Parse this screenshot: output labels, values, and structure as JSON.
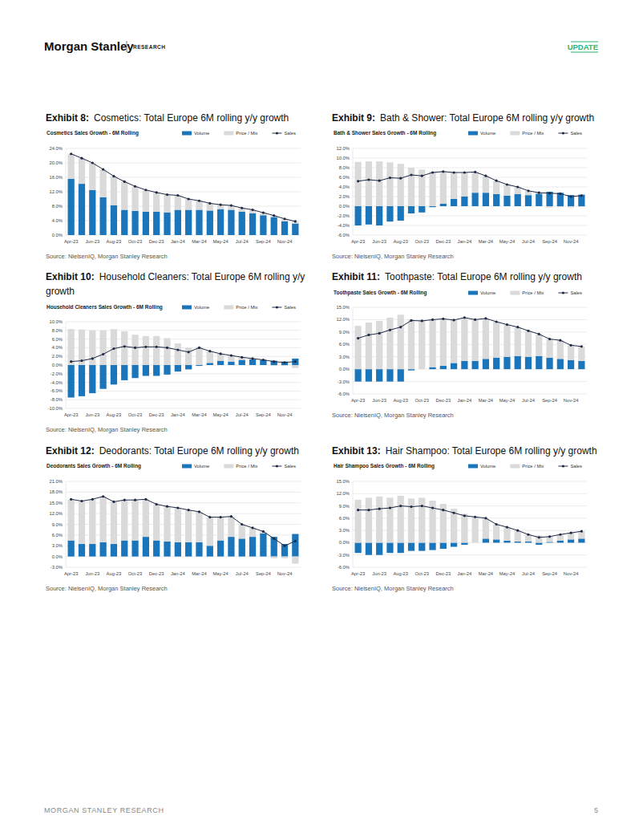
{
  "header": {
    "brand": "Morgan Stanley",
    "section": "RESEARCH",
    "tag": "UPDATE"
  },
  "footer": {
    "left": "MORGAN STANLEY RESEARCH",
    "page": "5"
  },
  "chart_data": [
    {
      "type": "bar",
      "stacked": true,
      "legend": "top-right",
      "grid": true,
      "exhibit": "Exhibit 8:",
      "title": "Cosmetics: Total Europe 6M rolling y/y growth",
      "subtitle": "Cosmetics Sales Growth - 6M Rolling",
      "source": "Source: NielsenIQ, Morgan Stanley Research",
      "categories": [
        "Apr-23",
        null,
        "Jun-23",
        null,
        "Aug-23",
        null,
        "Oct-23",
        null,
        "Dec-23",
        null,
        "Jan-24",
        null,
        "Mar-24",
        null,
        "May-24",
        null,
        "Jul-24",
        null,
        "Sep-24",
        null,
        "Nov-24",
        null
      ],
      "ylim": [
        0,
        24
      ],
      "yticks": [
        {
          "value": 0,
          "label": "0.0%"
        },
        {
          "value": 4,
          "label": "4.0%"
        },
        {
          "value": 8,
          "label": "8.0%"
        },
        {
          "value": 12,
          "label": "12.0%"
        },
        {
          "value": 16,
          "label": "16.0%"
        },
        {
          "value": 20,
          "label": "20.0%"
        },
        {
          "value": 24,
          "label": "24.0%"
        }
      ],
      "series": [
        {
          "name": "Volume",
          "type": "bar",
          "color": "#1b75bb",
          "values": [
            15.6,
            14.2,
            12.5,
            10.5,
            8.3,
            7.0,
            6.7,
            6.5,
            6.5,
            6.3,
            7.0,
            7.0,
            7.0,
            6.8,
            7.2,
            7.0,
            6.5,
            6.0,
            5.5,
            5.0,
            3.8,
            3.2
          ]
        },
        {
          "name": "Price / Mix",
          "type": "bar",
          "color": "#dadada",
          "values": [
            6.9,
            7.1,
            7.5,
            7.7,
            8.0,
            7.8,
            6.8,
            6.0,
            5.3,
            4.9,
            4.0,
            3.0,
            2.5,
            2.0,
            1.2,
            1.2,
            1.0,
            1.0,
            0.7,
            0.4,
            0.7,
            0.6
          ]
        },
        {
          "name": "Sales",
          "type": "line",
          "color": "#1f2a44",
          "marker": "circle",
          "values": [
            22.5,
            21.3,
            20.0,
            18.2,
            16.3,
            14.8,
            13.5,
            12.5,
            11.8,
            11.2,
            11.0,
            10.0,
            9.5,
            8.8,
            8.4,
            8.2,
            7.5,
            7.0,
            6.2,
            5.4,
            4.5,
            3.8
          ]
        }
      ]
    },
    {
      "type": "bar",
      "stacked": true,
      "legend": "top-right",
      "grid": true,
      "exhibit": "Exhibit 9:",
      "title": "Bath & Shower: Total Europe 6M rolling y/y growth",
      "subtitle": "Bath & Shower Sales Growth - 6M Rolling",
      "source": "Source: NielsenIQ, Morgan Stanley Research",
      "categories": [
        "Apr-23",
        null,
        "Jun-23",
        null,
        "Aug-23",
        null,
        "Oct-23",
        null,
        "Dec-23",
        null,
        "Jan-24",
        null,
        "Mar-24",
        null,
        "May-24",
        null,
        "Jul-24",
        null,
        "Sep-24",
        null,
        "Nov-24",
        null
      ],
      "ylim": [
        -6,
        12
      ],
      "yticks": [
        {
          "value": -6,
          "label": "-6.0%"
        },
        {
          "value": -4,
          "label": "-4.0%"
        },
        {
          "value": -2,
          "label": "-2.0%"
        },
        {
          "value": 0,
          "label": "0.0%"
        },
        {
          "value": 2,
          "label": "2.0%"
        },
        {
          "value": 4,
          "label": "4.0%"
        },
        {
          "value": 6,
          "label": "6.0%"
        },
        {
          "value": 8,
          "label": "8.0%"
        },
        {
          "value": 10,
          "label": "10.0%"
        },
        {
          "value": 12,
          "label": "12.0%"
        }
      ],
      "series": [
        {
          "name": "Volume",
          "type": "bar",
          "color": "#1b75bb",
          "values": [
            -4.0,
            -3.8,
            -4.0,
            -3.2,
            -3.0,
            -1.5,
            -1.3,
            -0.2,
            0.5,
            1.5,
            2.0,
            2.8,
            2.8,
            2.5,
            2.2,
            2.5,
            2.3,
            2.6,
            3.0,
            2.8,
            2.3,
            2.4
          ]
        },
        {
          "name": "Price / Mix",
          "type": "bar",
          "color": "#dadada",
          "values": [
            9.2,
            9.3,
            9.3,
            9.1,
            8.8,
            8.0,
            7.6,
            7.2,
            6.7,
            5.5,
            5.0,
            4.3,
            3.5,
            2.8,
            2.3,
            1.5,
            0.9,
            0.2,
            -0.3,
            -0.2,
            -0.3,
            -0.2
          ]
        },
        {
          "name": "Sales",
          "type": "line",
          "color": "#1f2a44",
          "marker": "circle",
          "values": [
            5.2,
            5.5,
            5.3,
            5.9,
            5.8,
            6.5,
            6.3,
            7.0,
            7.2,
            7.0,
            7.0,
            7.1,
            6.3,
            5.3,
            4.5,
            4.0,
            3.2,
            2.8,
            2.7,
            2.6,
            2.0,
            2.2
          ]
        }
      ]
    },
    {
      "type": "bar",
      "stacked": true,
      "legend": "top-right",
      "grid": true,
      "exhibit": "Exhibit 10:",
      "title": "Household Cleaners: Total Europe 6M rolling y/y growth",
      "subtitle": "Household Cleaners Sales Growth - 6M Rolling",
      "source": "Source: NielsenIQ, Morgan Stanley Research",
      "categories": [
        "Apr-23",
        null,
        "Jun-23",
        null,
        "Aug-23",
        null,
        "Oct-23",
        null,
        "Dec-23",
        null,
        "Jan-24",
        null,
        "Mar-24",
        null,
        "May-24",
        null,
        "Jul-24",
        null,
        "Sep-24",
        null,
        "Nov-24",
        null
      ],
      "ylim": [
        -10,
        10
      ],
      "yticks": [
        {
          "value": -10,
          "label": "-10.0%"
        },
        {
          "value": -8,
          "label": "-8.0%"
        },
        {
          "value": -6,
          "label": "-6.0%"
        },
        {
          "value": -4,
          "label": "-4.0%"
        },
        {
          "value": -2,
          "label": "-2.0%"
        },
        {
          "value": 0,
          "label": "0.0%"
        },
        {
          "value": 2,
          "label": "2.0%"
        },
        {
          "value": 4,
          "label": "4.0%"
        },
        {
          "value": 6,
          "label": "6.0%"
        },
        {
          "value": 8,
          "label": "8.0%"
        },
        {
          "value": 10,
          "label": "10.0%"
        }
      ],
      "series": [
        {
          "name": "Volume",
          "type": "bar",
          "color": "#1b75bb",
          "values": [
            -7.5,
            -7.2,
            -6.5,
            -5.5,
            -4.5,
            -3.5,
            -3.0,
            -2.5,
            -2.5,
            -2.2,
            -1.5,
            -1.0,
            -0.2,
            0.5,
            1.0,
            0.8,
            1.2,
            1.3,
            1.2,
            1.0,
            0.8,
            1.5
          ]
        },
        {
          "name": "Price / Mix",
          "type": "bar",
          "color": "#dadada",
          "values": [
            8.3,
            8.2,
            8.0,
            8.0,
            8.3,
            7.8,
            7.0,
            6.7,
            6.7,
            6.2,
            5.0,
            4.0,
            4.2,
            2.7,
            1.6,
            1.4,
            0.6,
            0.2,
            0.0,
            -0.2,
            -0.2,
            -0.7
          ]
        },
        {
          "name": "Sales",
          "type": "line",
          "color": "#1f2a44",
          "marker": "circle",
          "values": [
            0.8,
            1.0,
            1.5,
            2.5,
            3.8,
            4.3,
            4.0,
            4.2,
            4.2,
            4.0,
            3.5,
            3.0,
            4.0,
            3.2,
            2.6,
            2.2,
            1.8,
            1.5,
            1.2,
            0.8,
            0.6,
            0.8
          ]
        }
      ]
    },
    {
      "type": "bar",
      "stacked": true,
      "legend": "top-right",
      "grid": true,
      "exhibit": "Exhibit 11:",
      "title": "Toothpaste: Total Europe 6M rolling y/y growth",
      "subtitle": "Toothpaste Sales Growth - 6M Rolling",
      "source": "Source: NielsenIQ, Morgan Stanley Research",
      "categories": [
        "Apr-23",
        null,
        "Jun-23",
        null,
        "Aug-23",
        null,
        "Oct-23",
        null,
        "Dec-23",
        null,
        "Jan-24",
        null,
        "Mar-24",
        null,
        "May-24",
        null,
        "Jul-24",
        null,
        "Sep-24",
        null,
        "Nov-24",
        null
      ],
      "ylim": [
        -6,
        15
      ],
      "yticks": [
        {
          "value": -6,
          "label": "-6.0%"
        },
        {
          "value": -3,
          "label": "-3.0%"
        },
        {
          "value": 0,
          "label": "0.0%"
        },
        {
          "value": 3,
          "label": "3.0%"
        },
        {
          "value": 6,
          "label": "6.0%"
        },
        {
          "value": 9,
          "label": "9.0%"
        },
        {
          "value": 12,
          "label": "12.0%"
        },
        {
          "value": 15,
          "label": "15.0%"
        }
      ],
      "series": [
        {
          "name": "Volume",
          "type": "bar",
          "color": "#1b75bb",
          "values": [
            -3.0,
            -3.0,
            -3.0,
            -3.0,
            -3.0,
            -0.3,
            0.0,
            0.5,
            0.8,
            1.5,
            2.0,
            2.0,
            2.5,
            2.8,
            3.0,
            3.2,
            3.0,
            3.2,
            2.8,
            2.5,
            2.2,
            2.0
          ]
        },
        {
          "name": "Price / Mix",
          "type": "bar",
          "color": "#dadada",
          "values": [
            10.5,
            11.3,
            11.7,
            12.5,
            13.2,
            12.1,
            11.7,
            11.5,
            11.4,
            10.4,
            10.5,
            10.0,
            9.8,
            8.7,
            7.8,
            7.0,
            6.3,
            5.3,
            4.5,
            4.5,
            3.6,
            3.5
          ]
        },
        {
          "name": "Sales",
          "type": "line",
          "color": "#1f2a44",
          "marker": "circle",
          "values": [
            7.5,
            8.3,
            8.7,
            9.5,
            10.2,
            11.8,
            11.7,
            12.0,
            12.2,
            11.9,
            12.5,
            12.0,
            12.3,
            11.5,
            10.8,
            10.2,
            9.3,
            8.5,
            7.3,
            7.0,
            5.8,
            5.5
          ]
        }
      ]
    },
    {
      "type": "bar",
      "stacked": true,
      "legend": "top-right",
      "grid": true,
      "exhibit": "Exhibit 12:",
      "title": "Deodorants: Total Europe 6M rolling y/y growth",
      "subtitle": "Deodorants Sales Growth - 6M Rolling",
      "source": "Source: NielsenIQ, Morgan Stanley Research",
      "categories": [
        "Apr-23",
        null,
        "Jun-23",
        null,
        "Aug-23",
        null,
        "Oct-23",
        null,
        "Dec-23",
        null,
        "Jan-24",
        null,
        "Mar-24",
        null,
        "May-24",
        null,
        "Jul-24",
        null,
        "Sep-24",
        null,
        "Nov-24",
        null
      ],
      "ylim": [
        -3,
        21
      ],
      "yticks": [
        {
          "value": -3,
          "label": "-3.0%"
        },
        {
          "value": 0,
          "label": "0.0%"
        },
        {
          "value": 3,
          "label": "3.0%"
        },
        {
          "value": 6,
          "label": "6.0%"
        },
        {
          "value": 9,
          "label": "9.0%"
        },
        {
          "value": 12,
          "label": "12.0%"
        },
        {
          "value": 15,
          "label": "15.0%"
        },
        {
          "value": 18,
          "label": "18.0%"
        },
        {
          "value": 21,
          "label": "21.0%"
        }
      ],
      "series": [
        {
          "name": "Volume",
          "type": "bar",
          "color": "#1b75bb",
          "values": [
            4.5,
            3.5,
            3.5,
            4.0,
            3.5,
            4.5,
            4.5,
            5.5,
            4.5,
            4.2,
            4.0,
            4.0,
            4.0,
            3.0,
            4.5,
            5.5,
            5.0,
            5.5,
            6.5,
            5.5,
            3.5,
            6.3
          ]
        },
        {
          "name": "Price / Mix",
          "type": "bar",
          "color": "#dadada",
          "values": [
            11.5,
            12.0,
            12.5,
            12.8,
            11.8,
            11.3,
            11.3,
            10.5,
            10.1,
            9.8,
            9.6,
            9.0,
            8.5,
            8.0,
            6.5,
            5.7,
            4.0,
            2.5,
            0.5,
            -0.5,
            -0.5,
            -2.0
          ]
        },
        {
          "name": "Sales",
          "type": "line",
          "color": "#1f2a44",
          "marker": "circle",
          "values": [
            16.0,
            15.5,
            16.0,
            16.8,
            15.3,
            15.8,
            15.8,
            16.0,
            14.6,
            14.0,
            13.6,
            13.0,
            12.5,
            11.0,
            11.0,
            11.2,
            9.0,
            8.0,
            7.0,
            5.0,
            3.0,
            4.3
          ]
        }
      ]
    },
    {
      "type": "bar",
      "stacked": true,
      "legend": "top-right",
      "grid": true,
      "exhibit": "Exhibit 13:",
      "title": "Hair Shampoo: Total Europe 6M rolling y/y growth",
      "subtitle": "Hair Shampoo Sales Growth - 6M Rolling",
      "source": "Source: NielsenIQ, Morgan Stanley Research",
      "categories": [
        "Apr-23",
        null,
        "Jun-23",
        null,
        "Aug-23",
        null,
        "Oct-23",
        null,
        "Dec-23",
        null,
        "Jan-24",
        null,
        "Mar-24",
        null,
        "May-24",
        null,
        "Jul-24",
        null,
        "Sep-24",
        null,
        "Nov-24",
        null
      ],
      "ylim": [
        -6,
        15
      ],
      "yticks": [
        {
          "value": -6,
          "label": "-6.0%"
        },
        {
          "value": -3,
          "label": "-3.0%"
        },
        {
          "value": 0,
          "label": "0.0%"
        },
        {
          "value": 3,
          "label": "3.0%"
        },
        {
          "value": 6,
          "label": "6.0%"
        },
        {
          "value": 9,
          "label": "9.0%"
        },
        {
          "value": 12,
          "label": "12.0%"
        },
        {
          "value": 15,
          "label": "15.0%"
        }
      ],
      "series": [
        {
          "name": "Volume",
          "type": "bar",
          "color": "#1b75bb",
          "values": [
            -2.5,
            -3.0,
            -3.0,
            -2.5,
            -2.5,
            -2.0,
            -2.0,
            -1.8,
            -1.5,
            -1.0,
            -0.5,
            0.0,
            1.0,
            0.8,
            0.5,
            0.3,
            0.3,
            -0.5,
            0.2,
            0.5,
            0.8,
            1.0
          ]
        },
        {
          "name": "Price / Mix",
          "type": "bar",
          "color": "#dadada",
          "values": [
            10.5,
            11.0,
            11.3,
            11.0,
            11.5,
            10.8,
            11.0,
            10.3,
            9.5,
            8.3,
            7.1,
            6.3,
            5.0,
            3.7,
            3.3,
            2.7,
            1.7,
            1.8,
            1.3,
            1.5,
            1.6,
            1.8
          ]
        },
        {
          "name": "Sales",
          "type": "line",
          "color": "#1f2a44",
          "marker": "circle",
          "values": [
            8.0,
            8.0,
            8.3,
            8.5,
            9.0,
            8.8,
            9.0,
            8.5,
            8.0,
            7.3,
            6.6,
            6.3,
            6.0,
            4.5,
            3.8,
            3.0,
            2.0,
            1.3,
            1.5,
            2.0,
            2.4,
            2.8
          ]
        }
      ]
    }
  ]
}
